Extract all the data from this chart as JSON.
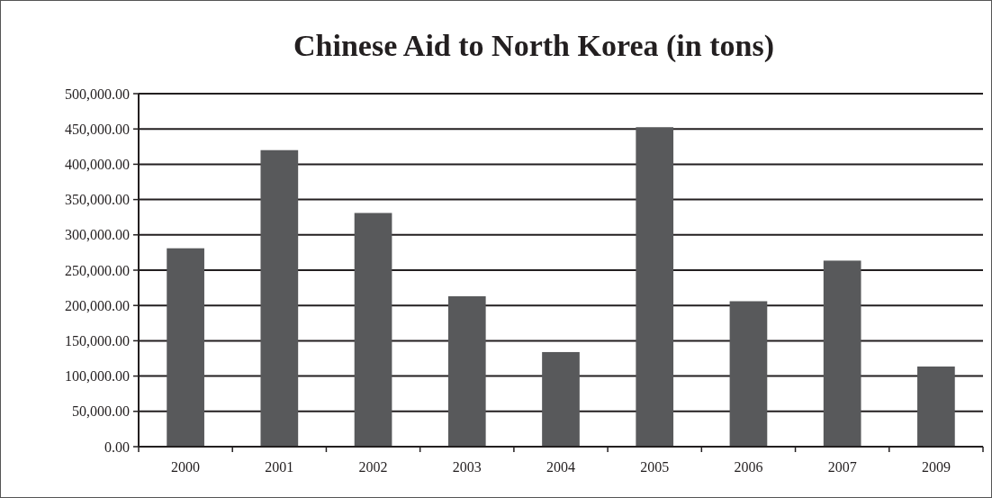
{
  "chart_data": {
    "type": "bar",
    "title": "Chinese Aid to North Korea (in tons)",
    "categories": [
      "2000",
      "2001",
      "2002",
      "2003",
      "2004",
      "2005",
      "2006",
      "2007",
      "2009"
    ],
    "values": [
      281000,
      420000,
      331000,
      213000,
      134000,
      452500,
      206000,
      263500,
      113500
    ],
    "color": "#58595b",
    "ylim": [
      0,
      500000
    ],
    "yticks": [
      {
        "value": 0,
        "label": "0.00"
      },
      {
        "value": 50000,
        "label": "50,000.00"
      },
      {
        "value": 100000,
        "label": "100,000.00"
      },
      {
        "value": 150000,
        "label": "150,000.00"
      },
      {
        "value": 200000,
        "label": "200,000.00"
      },
      {
        "value": 250000,
        "label": "250,000.00"
      },
      {
        "value": 300000,
        "label": "300,000.00"
      },
      {
        "value": 350000,
        "label": "350,000.00"
      },
      {
        "value": 400000,
        "label": "400,000.00"
      },
      {
        "value": 450000,
        "label": "450,000.00"
      },
      {
        "value": 500000,
        "label": "500,000.00"
      }
    ],
    "grid": true
  }
}
